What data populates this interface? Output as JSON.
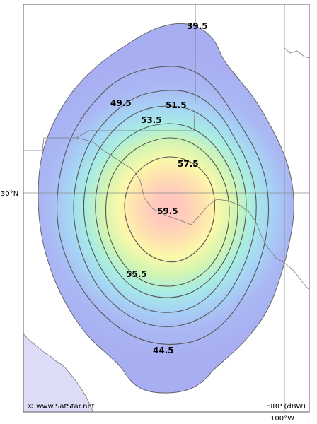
{
  "map": {
    "credit": "© www.SatStar.net",
    "units_label": "EIRP (dBW)",
    "lat_label": "30°N",
    "lon_label": "100°W",
    "contour_labels": [
      "39.5",
      "44.5",
      "49.5",
      "51.5",
      "53.5",
      "55.5",
      "57.5",
      "59.5"
    ]
  },
  "colors": {
    "frame": "#5a5a5a",
    "graticule": "#8c8c8c",
    "border": "#777777",
    "contour": "#555555",
    "water": "#dcdcf6",
    "outer": "#aab0f4",
    "core": "#ffc8c8"
  }
}
